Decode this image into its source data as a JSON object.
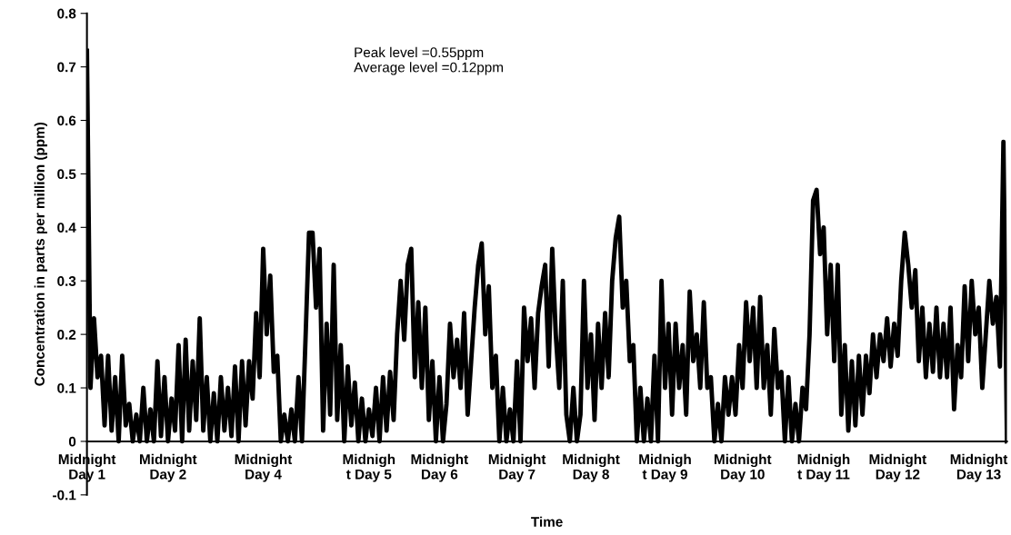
{
  "chart_data": {
    "type": "line",
    "xlabel": "Time",
    "ylabel": "Concentration in parts per million (ppm)",
    "annotations": [
      "Peak level =0.55ppm\nAverage level =0.12ppm"
    ],
    "ylim": [
      -0.1,
      0.8
    ],
    "yticks": [
      -0.1,
      0,
      0.1,
      0.2,
      0.3,
      0.4,
      0.5,
      0.6,
      0.7,
      0.8
    ],
    "categories": [
      "Midnight\nDay 1",
      null,
      null,
      null,
      null,
      null,
      null,
      null,
      null,
      null,
      null,
      null,
      null,
      null,
      null,
      null,
      null,
      null,
      null,
      null,
      null,
      null,
      null,
      "Midnight\nDay 2",
      null,
      null,
      null,
      null,
      null,
      null,
      null,
      null,
      null,
      null,
      null,
      null,
      null,
      null,
      null,
      null,
      null,
      null,
      null,
      null,
      null,
      null,
      null,
      null,
      null,
      null,
      "Midnight\nDay 4",
      null,
      null,
      null,
      null,
      null,
      null,
      null,
      null,
      null,
      null,
      null,
      null,
      null,
      null,
      null,
      null,
      null,
      null,
      null,
      null,
      null,
      null,
      null,
      null,
      null,
      null,
      null,
      null,
      null,
      "Midnigh\nt Day 5",
      null,
      null,
      null,
      null,
      null,
      null,
      null,
      null,
      null,
      null,
      null,
      null,
      null,
      null,
      null,
      null,
      null,
      null,
      null,
      "Midnight\nDay 6",
      null,
      null,
      null,
      null,
      null,
      null,
      null,
      null,
      null,
      null,
      null,
      null,
      null,
      null,
      null,
      null,
      null,
      null,
      null,
      null,
      null,
      "Midnight\nDay 7",
      null,
      null,
      null,
      null,
      null,
      null,
      null,
      null,
      null,
      null,
      null,
      null,
      null,
      null,
      null,
      null,
      null,
      null,
      null,
      null,
      "Midnight\nDay 8",
      null,
      null,
      null,
      null,
      null,
      null,
      null,
      null,
      null,
      null,
      null,
      null,
      null,
      null,
      null,
      null,
      null,
      null,
      null,
      null,
      "Midnigh\nt Day 9",
      null,
      null,
      null,
      null,
      null,
      null,
      null,
      null,
      null,
      null,
      null,
      null,
      null,
      null,
      null,
      null,
      null,
      null,
      null,
      null,
      null,
      "Midnight\nDay 10",
      null,
      null,
      null,
      null,
      null,
      null,
      null,
      null,
      null,
      null,
      null,
      null,
      null,
      null,
      null,
      null,
      null,
      null,
      null,
      null,
      null,
      null,
      "Midnigh\nt Day 11",
      null,
      null,
      null,
      null,
      null,
      null,
      null,
      null,
      null,
      null,
      null,
      null,
      null,
      null,
      null,
      null,
      null,
      null,
      null,
      null,
      "Midnight\nDay 12",
      null,
      null,
      null,
      null,
      null,
      null,
      null,
      null,
      null,
      null,
      null,
      null,
      null,
      null,
      null,
      null,
      null,
      null,
      null,
      null,
      null,
      null,
      "Midnight\nDay 13",
      null,
      null,
      null,
      null,
      null,
      null,
      null,
      null
    ],
    "grid": false,
    "legend": false,
    "marker": "none",
    "line_style": "solid",
    "series": [
      {
        "color": "#000000",
        "values": [
          0.73,
          0.1,
          0.23,
          0.12,
          0.16,
          0.03,
          0.16,
          0.02,
          0.12,
          0.0,
          0.16,
          0.03,
          0.07,
          0.0,
          0.05,
          0.0,
          0.1,
          0.0,
          0.06,
          0.0,
          0.15,
          0.01,
          0.12,
          0.0,
          0.08,
          0.02,
          0.18,
          0.0,
          0.19,
          0.02,
          0.15,
          0.04,
          0.23,
          0.02,
          0.12,
          0.0,
          0.09,
          0.0,
          0.12,
          0.02,
          0.1,
          0.01,
          0.14,
          0.0,
          0.15,
          0.03,
          0.15,
          0.08,
          0.24,
          0.12,
          0.36,
          0.2,
          0.31,
          0.13,
          0.16,
          0.0,
          0.05,
          0.0,
          0.06,
          0.0,
          0.12,
          0.0,
          0.19,
          0.39,
          0.39,
          0.25,
          0.36,
          0.02,
          0.22,
          0.05,
          0.33,
          0.04,
          0.18,
          0.0,
          0.14,
          0.03,
          0.11,
          0.0,
          0.08,
          0.0,
          0.06,
          0.01,
          0.1,
          0.0,
          0.12,
          0.02,
          0.13,
          0.04,
          0.2,
          0.3,
          0.19,
          0.33,
          0.36,
          0.12,
          0.26,
          0.1,
          0.25,
          0.04,
          0.15,
          0.0,
          0.12,
          0.0,
          0.07,
          0.22,
          0.12,
          0.19,
          0.1,
          0.24,
          0.05,
          0.15,
          0.25,
          0.33,
          0.37,
          0.2,
          0.29,
          0.1,
          0.16,
          0.0,
          0.1,
          0.0,
          0.06,
          0.0,
          0.15,
          0.0,
          0.25,
          0.15,
          0.23,
          0.1,
          0.24,
          0.29,
          0.33,
          0.14,
          0.36,
          0.2,
          0.1,
          0.3,
          0.05,
          0.0,
          0.1,
          0.0,
          0.05,
          0.3,
          0.1,
          0.2,
          0.04,
          0.22,
          0.1,
          0.24,
          0.12,
          0.3,
          0.38,
          0.42,
          0.25,
          0.3,
          0.15,
          0.18,
          0.0,
          0.1,
          0.0,
          0.08,
          0.0,
          0.16,
          0.0,
          0.3,
          0.1,
          0.22,
          0.05,
          0.22,
          0.1,
          0.18,
          0.05,
          0.28,
          0.15,
          0.2,
          0.1,
          0.26,
          0.1,
          0.12,
          0.0,
          0.07,
          0.0,
          0.12,
          0.05,
          0.12,
          0.05,
          0.18,
          0.1,
          0.26,
          0.15,
          0.25,
          0.1,
          0.27,
          0.1,
          0.18,
          0.05,
          0.21,
          0.1,
          0.13,
          0.0,
          0.12,
          0.0,
          0.07,
          0.0,
          0.1,
          0.06,
          0.2,
          0.45,
          0.47,
          0.35,
          0.4,
          0.2,
          0.33,
          0.15,
          0.33,
          0.05,
          0.18,
          0.02,
          0.15,
          0.03,
          0.16,
          0.05,
          0.16,
          0.09,
          0.2,
          0.12,
          0.2,
          0.15,
          0.23,
          0.14,
          0.22,
          0.16,
          0.3,
          0.39,
          0.33,
          0.25,
          0.32,
          0.15,
          0.25,
          0.12,
          0.22,
          0.13,
          0.25,
          0.12,
          0.22,
          0.12,
          0.25,
          0.06,
          0.18,
          0.12,
          0.29,
          0.15,
          0.3,
          0.2,
          0.25,
          0.1,
          0.2,
          0.3,
          0.22,
          0.27,
          0.14,
          0.56,
          0.0
        ]
      }
    ]
  }
}
